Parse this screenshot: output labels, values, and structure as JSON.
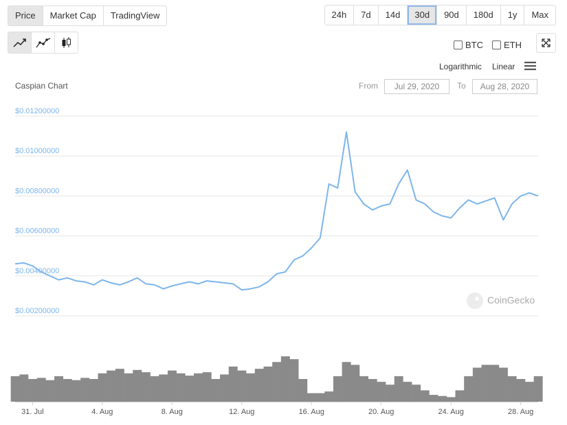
{
  "tabs": [
    "Price",
    "Market Cap",
    "TradingView"
  ],
  "ranges": [
    "24h",
    "7d",
    "14d",
    "30d",
    "90d",
    "180d",
    "1y",
    "Max"
  ],
  "compare": [
    "BTC",
    "ETH"
  ],
  "scales": [
    "Logarithmic",
    "Linear"
  ],
  "chart_data": {
    "type": "line",
    "title": "Caspian Chart",
    "from_label": "From",
    "from": "Jul 29, 2020",
    "to_label": "To",
    "to": "Aug 28, 2020",
    "watermark": "CoinGecko",
    "log_scale": false,
    "grid": true,
    "color": "#7cb5ec",
    "volume_color": "#8a8a8a",
    "categories": [
      null,
      null,
      "31. Jul",
      null,
      null,
      null,
      null,
      null,
      null,
      null,
      "4. Aug",
      null,
      null,
      null,
      null,
      null,
      null,
      null,
      "8. Aug",
      null,
      null,
      null,
      null,
      null,
      null,
      null,
      "12. Aug",
      null,
      null,
      null,
      null,
      null,
      null,
      null,
      "16. Aug",
      null,
      null,
      null,
      null,
      null,
      null,
      null,
      "20. Aug",
      null,
      null,
      null,
      null,
      null,
      null,
      null,
      "24. Aug",
      null,
      null,
      null,
      null,
      null,
      null,
      null,
      "28. Aug",
      null,
      null
    ],
    "values": [
      0.0046,
      0.00465,
      0.0045,
      0.0042,
      0.004,
      0.0038,
      0.0039,
      0.00375,
      0.0037,
      0.00355,
      0.0038,
      0.00365,
      0.00355,
      0.0037,
      0.0039,
      0.0036,
      0.00355,
      0.00335,
      0.0035,
      0.0036,
      0.0037,
      0.0036,
      0.00375,
      0.0037,
      0.00365,
      0.0036,
      0.0033,
      0.00335,
      0.00345,
      0.0037,
      0.0041,
      0.0042,
      0.0048,
      0.005,
      0.0054,
      0.0059,
      0.0086,
      0.0084,
      0.0112,
      0.0082,
      0.0076,
      0.0073,
      0.0075,
      0.0076,
      0.0086,
      0.0093,
      0.0078,
      0.0076,
      0.0072,
      0.007,
      0.0069,
      0.0074,
      0.0078,
      0.0076,
      0.00775,
      0.0079,
      0.0068,
      0.0076,
      0.008,
      0.00815,
      0.008
    ],
    "volume": [
      45,
      48,
      40,
      42,
      38,
      45,
      40,
      38,
      42,
      40,
      50,
      55,
      58,
      50,
      56,
      52,
      45,
      48,
      55,
      50,
      46,
      50,
      52,
      40,
      48,
      62,
      55,
      50,
      58,
      62,
      70,
      80,
      75,
      40,
      15,
      15,
      18,
      45,
      70,
      65,
      45,
      40,
      35,
      30,
      45,
      35,
      30,
      20,
      12,
      10,
      8,
      20,
      45,
      60,
      65,
      65,
      60,
      45,
      40,
      35,
      45
    ],
    "ylim": [
      0.002,
      0.012
    ],
    "yticks": [
      {
        "value": 0.002,
        "label": "$0.00200000"
      },
      {
        "value": 0.004,
        "label": "$0.00400000"
      },
      {
        "value": 0.006,
        "label": "$0.00600000"
      },
      {
        "value": 0.008,
        "label": "$0.00800000"
      },
      {
        "value": 0.01,
        "label": "$0.01000000"
      },
      {
        "value": 0.012,
        "label": "$0.01200000"
      }
    ]
  }
}
